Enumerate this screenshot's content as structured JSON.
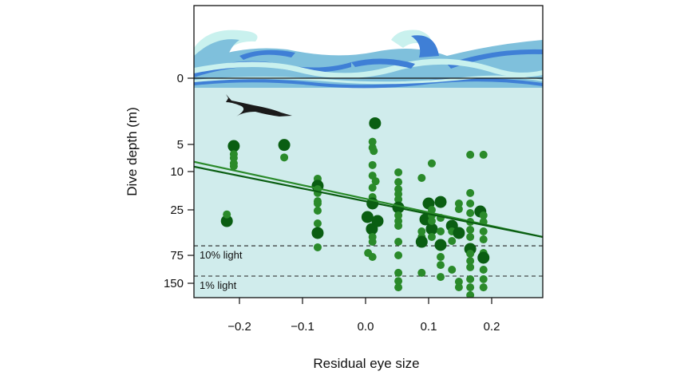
{
  "chart_data": {
    "type": "scatter",
    "title": "",
    "xlabel": "Residual eye size",
    "ylabel": "Dive depth (m)",
    "xlim": [
      -0.27,
      0.28
    ],
    "ylim": [
      0,
      190
    ],
    "y_scale": "nonlinear (compressed with depth)",
    "x_ticks": [
      -0.2,
      -0.1,
      0.0,
      0.1,
      0.2
    ],
    "x_tick_labels": [
      "−0.2",
      "−0.1",
      "0.0",
      "0.1",
      "0.2"
    ],
    "y_ticks": [
      0,
      5,
      10,
      25,
      75,
      150
    ],
    "y_tick_labels": [
      "0",
      "5",
      "10",
      "25",
      "75",
      "150"
    ],
    "grid": false,
    "colors": {
      "point": "#2a8a2a",
      "point_large": "#0a5e12",
      "line_upper": "#2a8a2a",
      "line_lower": "#0a5e12",
      "water": "#d0ecec",
      "wave_dark": "#3f7fd6",
      "wave_mid": "#7fc0dc",
      "wave_light": "#c9f1ee"
    },
    "reference_lines": [
      {
        "label": "10% light",
        "depth": 64.5
      },
      {
        "label": "1% light",
        "depth": 130.7
      }
    ],
    "regression_lines": [
      {
        "x": [
          -0.272,
          0.281
        ],
        "depth": [
          8.2,
          54.8
        ]
      },
      {
        "x": [
          -0.272,
          0.281
        ],
        "depth": [
          9.1,
          54.8
        ]
      }
    ],
    "points": [
      [
        -0.209,
        5.3,
        1
      ],
      [
        -0.209,
        6.8,
        0
      ],
      [
        -0.209,
        7.5,
        0
      ],
      [
        -0.209,
        8.5,
        0
      ],
      [
        -0.209,
        9.0,
        0
      ],
      [
        -0.22,
        37.3,
        1
      ],
      [
        -0.22,
        30.0,
        0
      ],
      [
        -0.129,
        5.1,
        1
      ],
      [
        -0.129,
        7.4,
        0
      ],
      [
        -0.076,
        12.8,
        0
      ],
      [
        -0.076,
        14.1,
        0
      ],
      [
        -0.076,
        15.6,
        1
      ],
      [
        -0.076,
        16.9,
        0
      ],
      [
        -0.076,
        18.4,
        0
      ],
      [
        -0.076,
        21.6,
        0
      ],
      [
        -0.076,
        22.5,
        0
      ],
      [
        -0.076,
        25.9,
        0
      ],
      [
        -0.076,
        39.9,
        0
      ],
      [
        -0.076,
        50.4,
        1
      ],
      [
        -0.076,
        66.2,
        0
      ],
      [
        0.015,
        3.4,
        1
      ],
      [
        0.011,
        4.8,
        0
      ],
      [
        0.011,
        5.6,
        0
      ],
      [
        0.013,
        6.2,
        0
      ],
      [
        0.011,
        8.8,
        0
      ],
      [
        0.011,
        11.6,
        0
      ],
      [
        0.016,
        13.8,
        0
      ],
      [
        0.011,
        16.3,
        0
      ],
      [
        0.011,
        20.0,
        0
      ],
      [
        0.011,
        22.5,
        1
      ],
      [
        0.003,
        32.9,
        1
      ],
      [
        0.019,
        37.3,
        1
      ],
      [
        0.01,
        46.0,
        1
      ],
      [
        0.011,
        54.8,
        0
      ],
      [
        0.011,
        60.1,
        0
      ],
      [
        0.004,
        72.4,
        0
      ],
      [
        0.011,
        79.3,
        0
      ],
      [
        0.052,
        10.3,
        0
      ],
      [
        0.052,
        14.1,
        0
      ],
      [
        0.052,
        16.9,
        0
      ],
      [
        0.052,
        18.8,
        0
      ],
      [
        0.052,
        20.9,
        0
      ],
      [
        0.052,
        24.1,
        1
      ],
      [
        0.052,
        31.1,
        0
      ],
      [
        0.052,
        37.3,
        0
      ],
      [
        0.052,
        42.5,
        0
      ],
      [
        0.052,
        60.1,
        0
      ],
      [
        0.052,
        75,
        0
      ],
      [
        0.052,
        122,
        0
      ],
      [
        0.052,
        144,
        0
      ],
      [
        0.052,
        161,
        0
      ],
      [
        0.089,
        12.5,
        0
      ],
      [
        0.089,
        48.7,
        0
      ],
      [
        0.089,
        54.8,
        0
      ],
      [
        0.089,
        60.1,
        1
      ],
      [
        0.089,
        122,
        0
      ],
      [
        0.1,
        22.5,
        1
      ],
      [
        0.095,
        35.5,
        1
      ],
      [
        0.105,
        46.0,
        1
      ],
      [
        0.105,
        8.5,
        0
      ],
      [
        0.105,
        25.0,
        0
      ],
      [
        0.105,
        31.1,
        0
      ],
      [
        0.105,
        37.3,
        0
      ],
      [
        0.105,
        54.8,
        0
      ],
      [
        0.119,
        21.9,
        1
      ],
      [
        0.119,
        33.8,
        0
      ],
      [
        0.119,
        48.7,
        0
      ],
      [
        0.119,
        63.6,
        1
      ],
      [
        0.119,
        79.3,
        0
      ],
      [
        0.119,
        101,
        0
      ],
      [
        0.119,
        133,
        0
      ],
      [
        0.137,
        42.5,
        1
      ],
      [
        0.137,
        48.7,
        0
      ],
      [
        0.137,
        59.2,
        0
      ],
      [
        0.137,
        113.6,
        0
      ],
      [
        0.148,
        50.4,
        1
      ],
      [
        0.148,
        22.5,
        0
      ],
      [
        0.148,
        24.7,
        0
      ],
      [
        0.148,
        145.7,
        0
      ],
      [
        0.148,
        160.7,
        0
      ],
      [
        0.166,
        6.9,
        0
      ],
      [
        0.166,
        18.4,
        0
      ],
      [
        0.166,
        22.5,
        0
      ],
      [
        0.166,
        28.5,
        0
      ],
      [
        0.166,
        38.2,
        0
      ],
      [
        0.166,
        46.9,
        0
      ],
      [
        0.166,
        54.8,
        0
      ],
      [
        0.166,
        68.0,
        1
      ],
      [
        0.166,
        73.2,
        0
      ],
      [
        0.166,
        90,
        0
      ],
      [
        0.166,
        107,
        0
      ],
      [
        0.166,
        139,
        0
      ],
      [
        0.166,
        161,
        0
      ],
      [
        0.166,
        182,
        0
      ],
      [
        0.187,
        6.9,
        0
      ],
      [
        0.182,
        26.8,
        1
      ],
      [
        0.187,
        31.1,
        0
      ],
      [
        0.187,
        38.2,
        0
      ],
      [
        0.187,
        48.7,
        0
      ],
      [
        0.187,
        57.5,
        0
      ],
      [
        0.187,
        72.4,
        0
      ],
      [
        0.187,
        81.4,
        1
      ],
      [
        0.187,
        113.6,
        0
      ],
      [
        0.187,
        139,
        0
      ],
      [
        0.187,
        161,
        0
      ]
    ]
  },
  "decorations": {
    "surface": "wave-illustration",
    "animal": "diving-bird-silhouette"
  }
}
